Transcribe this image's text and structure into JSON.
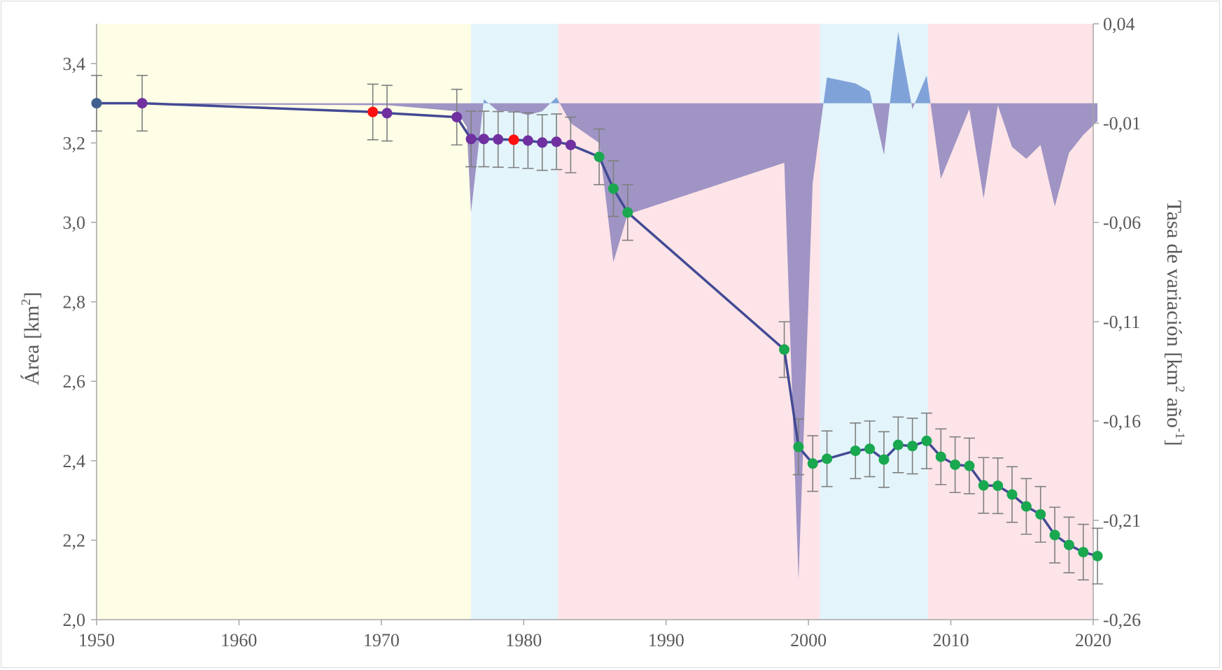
{
  "chart_data": {
    "type": "line",
    "x_axis": {
      "range": [
        1950,
        2020
      ],
      "ticks": [
        1950,
        1960,
        1970,
        1980,
        1990,
        2000,
        2010,
        2020
      ],
      "tick_labels": [
        "1950",
        "1960",
        "1970",
        "1980",
        "1990",
        "2000",
        "2010",
        "2020"
      ]
    },
    "y_axis_left": {
      "title": "Área [km",
      "title_superscript": "2",
      "title_suffix": "]",
      "range": [
        2.0,
        3.5
      ],
      "ticks": [
        2.0,
        2.2,
        2.4,
        2.6,
        2.8,
        3.0,
        3.2,
        3.4
      ],
      "tick_labels": [
        "2,0",
        "2,2",
        "2,4",
        "2,6",
        "2,8",
        "3,0",
        "3,2",
        "3,4"
      ]
    },
    "y_axis_right": {
      "title": "Tasa de variación [km",
      "title_superscript": "2",
      "title_middle": " año",
      "title_superscript2": "-1",
      "title_suffix": "]",
      "range": [
        -0.26,
        0.04
      ],
      "ticks": [
        0.04,
        -0.01,
        -0.06,
        -0.11,
        -0.16,
        -0.21,
        -0.26
      ],
      "tick_labels": [
        "0,04",
        "-0,01",
        "-0,06",
        "-0,11",
        "-0,16",
        "-0,21",
        "-0,26"
      ]
    },
    "background_periods": [
      {
        "start": 1950,
        "end": 1976.3,
        "color": "#fefee6"
      },
      {
        "start": 1976.3,
        "end": 1982.4,
        "color": "#e3f4fb"
      },
      {
        "start": 1982.4,
        "end": 2000.8,
        "color": "#fde4e8"
      },
      {
        "start": 2000.8,
        "end": 2008.4,
        "color": "#e3f4fb"
      },
      {
        "start": 2008.4,
        "end": 2020.5,
        "color": "#fde4e8"
      }
    ],
    "series": [
      {
        "type": "area",
        "axis": "right",
        "positive_color": "#7fa3d8",
        "negative_color": "#9a8fc2",
        "x": [
          1950,
          1953.2,
          1969.4,
          1970.4,
          1975.3,
          1976.0,
          1976.3,
          1977.2,
          1978.2,
          1979.3,
          1980.3,
          1981.3,
          1982.3,
          1983.3,
          1985.3,
          1986.3,
          1987.3,
          1998.3,
          1999.3,
          2000.3,
          2001.3,
          2003.3,
          2004.3,
          2005.3,
          2006.3,
          2007.3,
          2008.3,
          2009.3,
          2011.3,
          2012.3,
          2013.3,
          2014.3,
          2015.3,
          2016.3,
          2017.3,
          2018.3,
          2019.3,
          2020.3
        ],
        "values": [
          0.0,
          -0.0005,
          -0.001,
          -0.001,
          -0.004,
          -0.012,
          -0.055,
          0.002,
          -0.004,
          -0.004,
          -0.006,
          -0.004,
          0.003,
          -0.01,
          -0.02,
          -0.08,
          -0.056,
          -0.03,
          -0.24,
          -0.04,
          0.013,
          0.01,
          0.006,
          -0.026,
          0.036,
          -0.003,
          0.014,
          -0.038,
          -0.003,
          -0.048,
          -0.001,
          -0.022,
          -0.028,
          -0.021,
          -0.052,
          -0.025,
          -0.016,
          -0.009
        ]
      },
      {
        "type": "line",
        "axis": "left",
        "line_color": "#434a94",
        "marker_colors": {
          "blue": "#3f5f8f",
          "purple": "#7030a0",
          "red": "#ff1010",
          "green": "#19a84f"
        },
        "error_bar": 0.07,
        "x": [
          1950,
          1953.2,
          1969.4,
          1970.4,
          1975.3,
          1976.3,
          1977.2,
          1978.2,
          1979.3,
          1980.3,
          1981.3,
          1982.3,
          1983.3,
          1985.3,
          1986.3,
          1987.3,
          1998.3,
          1999.3,
          2000.3,
          2001.3,
          2003.3,
          2004.3,
          2005.3,
          2006.3,
          2007.3,
          2008.3,
          2009.3,
          2010.3,
          2011.3,
          2012.3,
          2013.3,
          2014.3,
          2015.3,
          2016.3,
          2017.3,
          2018.3,
          2019.3,
          2020.3
        ],
        "values": [
          3.3,
          3.3,
          3.278,
          3.275,
          3.265,
          3.21,
          3.21,
          3.209,
          3.208,
          3.206,
          3.201,
          3.203,
          3.195,
          3.165,
          3.085,
          3.025,
          2.68,
          2.435,
          2.393,
          2.405,
          2.425,
          2.43,
          2.403,
          2.44,
          2.437,
          2.45,
          2.41,
          2.39,
          2.387,
          2.338,
          2.337,
          2.315,
          2.285,
          2.265,
          2.213,
          2.188,
          2.17,
          2.16
        ],
        "marker": [
          "blue",
          "purple",
          "red",
          "purple",
          "purple",
          "purple",
          "purple",
          "purple",
          "red",
          "purple",
          "purple",
          "purple",
          "purple",
          "green",
          "green",
          "green",
          "green",
          "green",
          "green",
          "green",
          "green",
          "green",
          "green",
          "green",
          "green",
          "green",
          "green",
          "green",
          "green",
          "green",
          "green",
          "green",
          "green",
          "green",
          "green",
          "green",
          "green",
          "green"
        ]
      }
    ]
  }
}
